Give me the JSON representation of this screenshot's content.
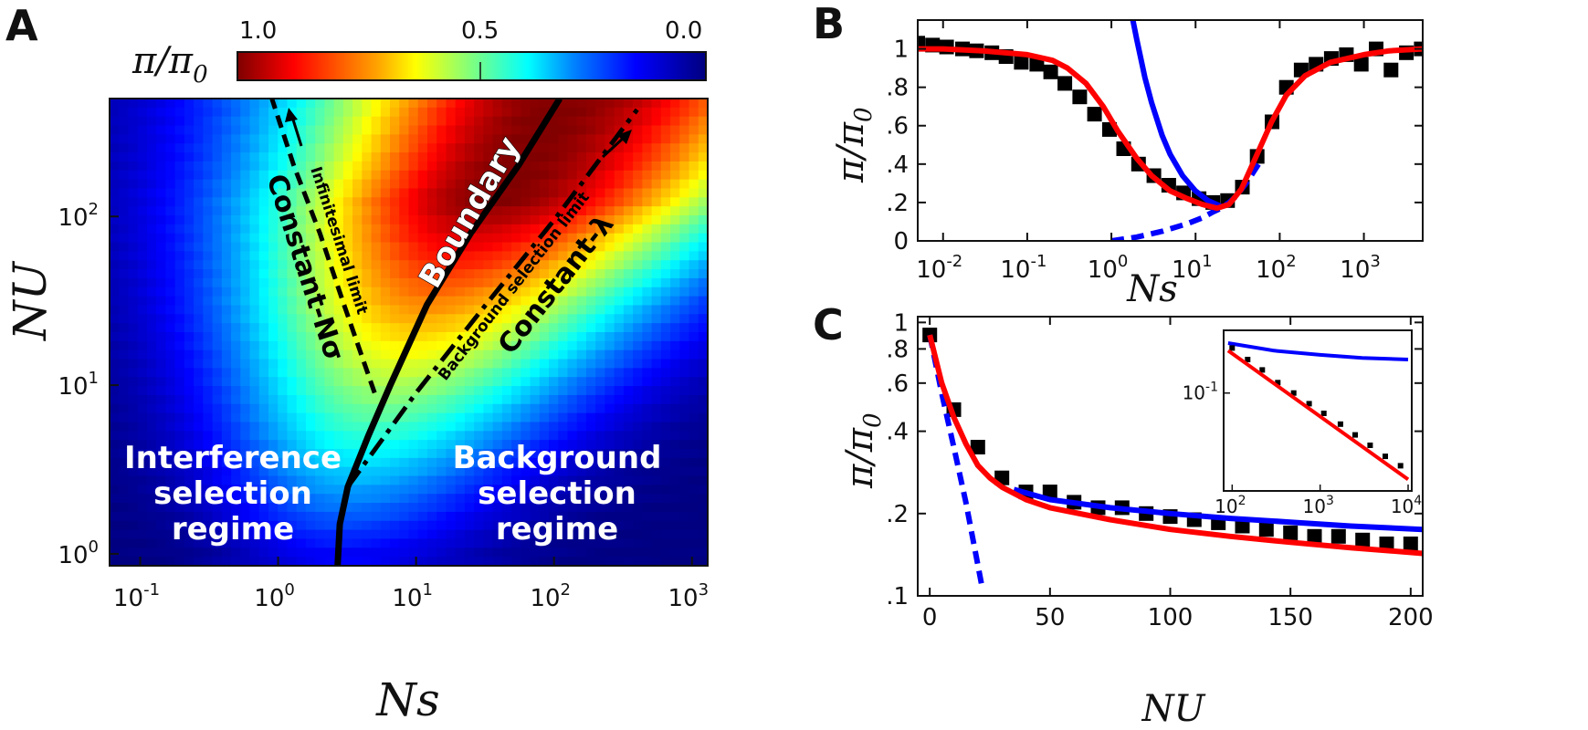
{
  "panels": {
    "A": {
      "letter": "A",
      "colorbar": {
        "label": "π/π",
        "label_sub": "0",
        "ticks": [
          "1.0",
          "0.5",
          "0.0"
        ],
        "colormap": "jet-reversed"
      },
      "xlabel": "Ns",
      "ylabel": "NU",
      "xticks": [
        {
          "base": "10",
          "exp": "-1"
        },
        {
          "base": "10",
          "exp": "0"
        },
        {
          "base": "10",
          "exp": "1"
        },
        {
          "base": "10",
          "exp": "2"
        },
        {
          "base": "10",
          "exp": "3"
        }
      ],
      "yticks": [
        {
          "base": "10",
          "exp": "0"
        },
        {
          "base": "10",
          "exp": "1"
        },
        {
          "base": "10",
          "exp": "2"
        }
      ],
      "labels": {
        "interference": [
          "Interference",
          "selection",
          "regime"
        ],
        "background": [
          "Background",
          "selection",
          "regime"
        ],
        "boundary": "Boundary",
        "constant_n_sigma": "Constant-Nσ",
        "infinitesimal": "Infinitesimal limit",
        "background_limit": "Background selection limit",
        "constant_lambda": "Constant-λ"
      }
    },
    "B": {
      "letter": "B",
      "xlabel": "Ns",
      "ylabel": "π/π",
      "ylabel_sub": "0",
      "yticks": [
        "0",
        ".2",
        ".4",
        ".6",
        ".8",
        "1"
      ],
      "xticks": [
        {
          "base": "10",
          "exp": "-2"
        },
        {
          "base": "10",
          "exp": "-1"
        },
        {
          "base": "10",
          "exp": "0"
        },
        {
          "base": "10",
          "exp": "1"
        },
        {
          "base": "10",
          "exp": "2"
        },
        {
          "base": "10",
          "exp": "3"
        }
      ]
    },
    "C": {
      "letter": "C",
      "xlabel": "NU",
      "ylabel": "π/π",
      "ylabel_sub": "0",
      "yticks": [
        ".1",
        ".2",
        ".4",
        ".6",
        ".8",
        "1"
      ],
      "xticks": [
        "0",
        "50",
        "100",
        "150",
        "200"
      ],
      "inset": {
        "yticks": [
          {
            "base": "10",
            "exp": "-1"
          }
        ],
        "xticks": [
          {
            "base": "10",
            "exp": "2"
          },
          {
            "base": "10",
            "exp": "3"
          },
          {
            "base": "10",
            "exp": "4"
          }
        ]
      }
    }
  },
  "colors": {
    "simulation": "#000000",
    "interference_theory": "#0000ff",
    "combined_theory": "#ff0000",
    "background_theory": "#0000ff"
  },
  "chart_data": [
    {
      "panel": "A",
      "type": "heatmap",
      "x_scale": "log",
      "y_scale": "log",
      "xlim": [
        0.06,
        1300
      ],
      "ylim": [
        0.85,
        500
      ],
      "value": "π/π0",
      "zlim": [
        0.0,
        1.0
      ],
      "curves": [
        {
          "name": "Boundary",
          "style": "solid",
          "x": [
            2.7,
            2.8,
            3.2,
            4.5,
            6.5,
            12,
            25,
            55,
            110
          ],
          "y": [
            0.85,
            1.5,
            2.5,
            5,
            10,
            30,
            80,
            200,
            500
          ]
        },
        {
          "name": "Constant-Nσ",
          "style": "dashed",
          "x": [
            5.0,
            3.0,
            2.0,
            1.3,
            0.9
          ],
          "y": [
            9,
            30,
            80,
            200,
            500
          ]
        },
        {
          "name": "Constant-λ",
          "style": "dash-dot",
          "x": [
            3.2,
            10,
            30,
            100,
            400
          ],
          "y": [
            2.5,
            9,
            28,
            95,
            430
          ]
        }
      ]
    },
    {
      "panel": "B",
      "type": "scatter",
      "x_scale": "log",
      "xlim": [
        0.005,
        5000
      ],
      "ylim": [
        0,
        1.15
      ],
      "series": [
        {
          "role": "simulation",
          "style": "square-markers",
          "x": [
            0.005,
            0.0075,
            0.011,
            0.017,
            0.025,
            0.038,
            0.056,
            0.085,
            0.13,
            0.19,
            0.28,
            0.42,
            0.63,
            0.95,
            1.4,
            2.1,
            3.2,
            4.8,
            7.2,
            11,
            16,
            24,
            36,
            54,
            81,
            120,
            180,
            270,
            410,
            620,
            930,
            1400,
            2100,
            3200,
            4800
          ],
          "y": [
            1.03,
            1.02,
            1.01,
            1.0,
            0.99,
            0.98,
            0.96,
            0.93,
            0.92,
            0.88,
            0.82,
            0.75,
            0.66,
            0.58,
            0.48,
            0.4,
            0.34,
            0.29,
            0.25,
            0.22,
            0.2,
            0.21,
            0.28,
            0.44,
            0.62,
            0.8,
            0.89,
            0.92,
            0.95,
            0.97,
            0.92,
            1.0,
            0.89,
            0.98,
            1.0
          ]
        },
        {
          "role": "interference_theory",
          "style": "solid",
          "x": [
            1.8,
            2.0,
            2.5,
            3,
            4,
            5,
            7,
            10,
            14,
            20
          ],
          "y": [
            1.15,
            1.05,
            0.85,
            0.72,
            0.55,
            0.45,
            0.34,
            0.26,
            0.21,
            0.18
          ]
        },
        {
          "role": "background_theory",
          "style": "dashed",
          "x": [
            1.0,
            2,
            4,
            8,
            12,
            16,
            20,
            25,
            30,
            40,
            60
          ],
          "y": [
            0.0,
            0.02,
            0.05,
            0.09,
            0.12,
            0.15,
            0.17,
            0.2,
            0.23,
            0.3,
            0.42
          ]
        },
        {
          "role": "combined_theory",
          "style": "solid",
          "x": [
            0.005,
            0.01,
            0.03,
            0.1,
            0.2,
            0.3,
            0.5,
            0.8,
            1.2,
            2,
            3,
            5,
            8,
            12,
            18,
            25,
            35,
            50,
            80,
            120,
            200,
            400,
            1000,
            2000,
            5000
          ],
          "y": [
            1.0,
            1.0,
            0.99,
            0.97,
            0.94,
            0.9,
            0.82,
            0.7,
            0.57,
            0.43,
            0.34,
            0.26,
            0.22,
            0.19,
            0.17,
            0.19,
            0.27,
            0.42,
            0.62,
            0.76,
            0.86,
            0.93,
            0.97,
            0.99,
            1.0
          ]
        }
      ]
    },
    {
      "panel": "C",
      "type": "scatter",
      "y_scale": "log",
      "xlim": [
        -5,
        205
      ],
      "ylim": [
        0.1,
        1.05
      ],
      "series": [
        {
          "role": "simulation",
          "style": "square-markers",
          "x": [
            0,
            10,
            20,
            30,
            40,
            50,
            60,
            70,
            80,
            90,
            100,
            110,
            120,
            130,
            140,
            150,
            160,
            170,
            180,
            190,
            200
          ],
          "y": [
            0.9,
            0.48,
            0.35,
            0.27,
            0.24,
            0.24,
            0.22,
            0.21,
            0.21,
            0.2,
            0.195,
            0.19,
            0.185,
            0.18,
            0.175,
            0.17,
            0.165,
            0.165,
            0.16,
            0.155,
            0.155
          ]
        },
        {
          "role": "background_theory",
          "style": "dashed",
          "x": [
            0,
            5,
            10,
            15,
            20,
            22
          ],
          "y": [
            0.9,
            0.55,
            0.35,
            0.22,
            0.13,
            0.105
          ]
        },
        {
          "role": "interference_theory",
          "style": "solid",
          "x": [
            35,
            50,
            75,
            100,
            125,
            150,
            175,
            205
          ],
          "y": [
            0.245,
            0.225,
            0.21,
            0.2,
            0.192,
            0.186,
            0.18,
            0.175
          ]
        },
        {
          "role": "combined_theory",
          "style": "solid",
          "x": [
            0,
            5,
            10,
            15,
            20,
            25,
            30,
            40,
            50,
            75,
            100,
            125,
            150,
            175,
            205
          ],
          "y": [
            0.9,
            0.6,
            0.45,
            0.36,
            0.3,
            0.27,
            0.25,
            0.225,
            0.21,
            0.19,
            0.175,
            0.165,
            0.157,
            0.15,
            0.143
          ]
        }
      ],
      "inset": {
        "x_scale": "log",
        "y_scale": "log",
        "xlim": [
          80,
          11000
        ],
        "series": [
          {
            "role": "interference_theory",
            "style": "solid",
            "x": [
              90,
              300,
              1000,
              3000,
              10000
            ],
            "y": [
              0.24,
              0.21,
              0.195,
              0.185,
              0.18
            ]
          },
          {
            "role": "simulation",
            "style": "square-markers",
            "x": [
              100,
              150,
              220,
              330,
              500,
              750,
              1100,
              1700,
              2500,
              3700,
              5500,
              8200
            ],
            "y": [
              0.22,
              0.18,
              0.15,
              0.12,
              0.1,
              0.083,
              0.07,
              0.058,
              0.048,
              0.04,
              0.033,
              0.028
            ]
          },
          {
            "role": "combined_theory",
            "style": "solid",
            "x": [
              90,
              10000
            ],
            "y": [
              0.21,
              0.022
            ]
          }
        ]
      }
    }
  ]
}
